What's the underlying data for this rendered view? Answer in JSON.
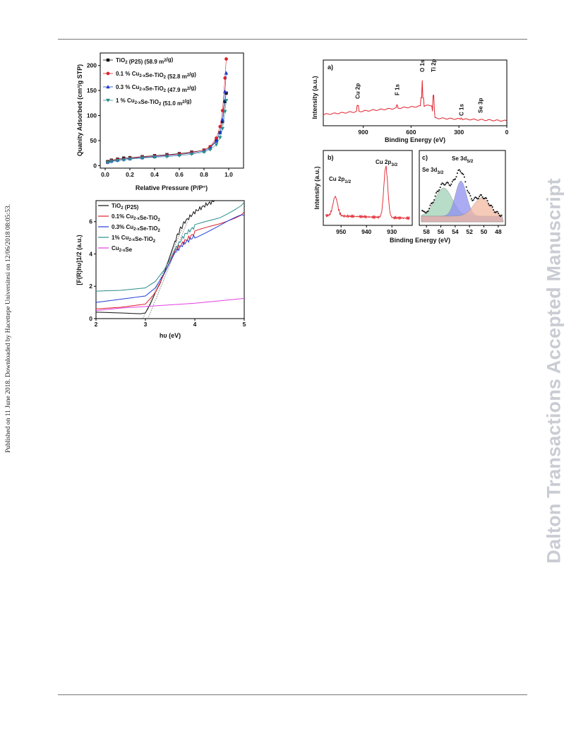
{
  "side_left": "Published on 11 June 2018. Downloaded by Hacettepe Universitesi on 12/06/2018 08:05:53.",
  "side_right": "Dalton Transactions Accepted Manuscript",
  "colors": {
    "black": "#111111",
    "red": "#e0202a",
    "blue": "#1f3fd6",
    "teal": "#2a8c8a",
    "magenta": "#e040e0",
    "gray": "#777777"
  },
  "chart_data": [
    {
      "id": "bet",
      "type": "scatter",
      "xlabel": "Relative Pressure (P/P°)",
      "ylabel": "Quanity Adsorbed (cm³/g STP)",
      "xticks": [
        "0.0",
        "0.2",
        "0.4",
        "0.6",
        "0.8",
        "1.0"
      ],
      "yticks": [
        "0",
        "50",
        "100",
        "150",
        "200"
      ],
      "xlim": [
        -0.04,
        1.12
      ],
      "ylim": [
        -5,
        225
      ],
      "legend_position": "top-left",
      "series": [
        {
          "name": "TiO2 (P25) (58.9 m2/g)",
          "color": "black",
          "marker": "square",
          "x": [
            0.02,
            0.05,
            0.1,
            0.15,
            0.2,
            0.3,
            0.4,
            0.5,
            0.6,
            0.7,
            0.8,
            0.85,
            0.9,
            0.93,
            0.95,
            0.97,
            0.98
          ],
          "y": [
            8,
            11,
            13,
            15,
            16,
            18,
            20,
            22,
            24,
            27,
            31,
            37,
            50,
            66,
            88,
            128,
            145
          ]
        },
        {
          "name": "0.1 % Cu2-xSe-TiO2 (52.8 m2/g)",
          "color": "red",
          "marker": "circle",
          "x": [
            0.02,
            0.05,
            0.1,
            0.15,
            0.2,
            0.3,
            0.4,
            0.5,
            0.6,
            0.7,
            0.8,
            0.85,
            0.9,
            0.93,
            0.95,
            0.97,
            0.98
          ],
          "y": [
            7,
            10,
            12,
            13,
            15,
            17,
            19,
            21,
            23,
            26,
            31,
            38,
            55,
            78,
            110,
            175,
            213
          ]
        },
        {
          "name": "0.3 % Cu2-xSe-TiO2 (47.9 m2/g)",
          "color": "blue",
          "marker": "triangle",
          "x": [
            0.02,
            0.05,
            0.1,
            0.15,
            0.2,
            0.3,
            0.4,
            0.5,
            0.6,
            0.7,
            0.8,
            0.85,
            0.9,
            0.93,
            0.95,
            0.97,
            0.98
          ],
          "y": [
            7,
            9,
            11,
            13,
            14,
            16,
            18,
            20,
            22,
            25,
            29,
            35,
            49,
            66,
            92,
            148,
            185
          ]
        },
        {
          "name": "1 % Cu2-xSe-TiO2 (51.0 m2/g)",
          "color": "teal",
          "marker": "triangle-down",
          "x": [
            0.02,
            0.05,
            0.1,
            0.15,
            0.2,
            0.3,
            0.4,
            0.5,
            0.6,
            0.7,
            0.8,
            0.85,
            0.9,
            0.93,
            0.95,
            0.97,
            0.98
          ],
          "y": [
            6,
            8,
            10,
            11,
            13,
            15,
            17,
            18,
            20,
            23,
            27,
            32,
            42,
            56,
            74,
            108,
            130
          ]
        }
      ]
    },
    {
      "id": "tauc",
      "type": "line",
      "xlabel": "hυ (eV)",
      "ylabel": "[F(R)hυ]1/2 (a.u.)",
      "xticks": [
        "2",
        "3",
        "4",
        "5"
      ],
      "yticks": [
        "0",
        "2",
        "4",
        "6"
      ],
      "xlim": [
        2,
        5
      ],
      "ylim": [
        0,
        7.3
      ],
      "legend_position": "top-left",
      "series": [
        {
          "name": "TiO2 (P25)",
          "color": "black",
          "x": [
            2,
            2.5,
            2.9,
            3.0,
            3.1,
            3.2,
            3.3,
            3.4,
            3.5,
            3.6,
            3.7,
            3.8,
            4.0,
            4.2,
            4.4
          ],
          "y": [
            0.4,
            0.35,
            0.3,
            0.35,
            0.9,
            1.6,
            2.2,
            3.0,
            3.9,
            4.8,
            5.5,
            6.0,
            6.6,
            7.0,
            7.3
          ]
        },
        {
          "name": "0.1% Cu2-xSe-TiO2",
          "color": "red",
          "x": [
            2,
            2.5,
            3.0,
            3.2,
            3.4,
            3.6,
            3.8,
            4.0,
            4.5,
            5.0
          ],
          "y": [
            0.6,
            0.7,
            0.9,
            1.6,
            2.9,
            4.2,
            4.8,
            5.3,
            5.9,
            6.6
          ]
        },
        {
          "name": "0.3% Cu2-xSe-TiO2",
          "color": "blue",
          "x": [
            2,
            2.5,
            3.0,
            3.2,
            3.4,
            3.6,
            3.8,
            4.0,
            4.5,
            5.0
          ],
          "y": [
            1.0,
            1.2,
            1.4,
            1.9,
            2.9,
            4.1,
            4.7,
            5.1,
            5.7,
            6.4
          ]
        },
        {
          "name": "1% Cu2-xSe-TiO2",
          "color": "teal",
          "x": [
            2,
            2.5,
            3.0,
            3.2,
            3.4,
            3.6,
            3.8,
            4.0,
            4.5,
            5.0
          ],
          "y": [
            1.7,
            1.75,
            1.9,
            2.3,
            3.1,
            4.3,
            5.2,
            5.7,
            6.3,
            7.2
          ]
        },
        {
          "name": "Cu2-xSe",
          "color": "magenta",
          "x": [
            2,
            2.5,
            3.0,
            3.5,
            4.0,
            4.5,
            5.0
          ],
          "y": [
            0.5,
            0.65,
            0.75,
            0.85,
            0.95,
            1.1,
            1.25
          ]
        }
      ]
    },
    {
      "id": "xps-survey",
      "type": "line",
      "panel": "a)",
      "xlabel": "Binding Energy (eV)",
      "ylabel": "Intensity (a.u.)",
      "xticks": [
        "900",
        "600",
        "300",
        "0"
      ],
      "xlim": [
        1150,
        0
      ],
      "peaks": [
        "Cu 2p",
        "F 1s",
        "O 1s",
        "Ti 2p",
        "C 1s",
        "Se 3p"
      ]
    },
    {
      "id": "xps-cu",
      "type": "line",
      "panel": "b)",
      "ylabel": "Intensity (a.u.)",
      "xticks": [
        "950",
        "940",
        "930"
      ],
      "xlim": [
        957,
        922
      ],
      "peaks": [
        "Cu 2p1/2",
        "Cu 2p3/2"
      ]
    },
    {
      "id": "xps-se",
      "type": "scatter",
      "panel": "c)",
      "xticks": [
        "58",
        "56",
        "54",
        "52",
        "50",
        "48"
      ],
      "xlim": [
        59,
        47
      ],
      "peaks": [
        "Se 3d3/2",
        "Se 3d5/2"
      ]
    }
  ],
  "shared_xlabel": "Binding Energy (eV)"
}
